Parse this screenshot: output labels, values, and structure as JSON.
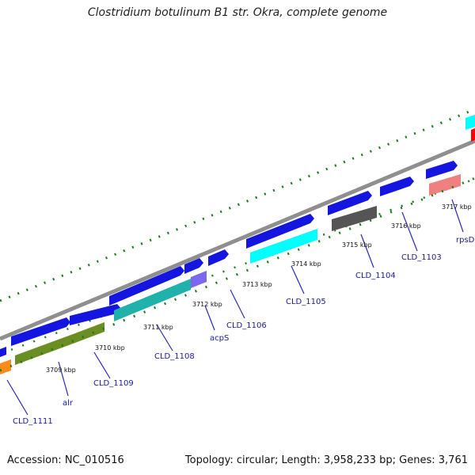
{
  "title": "Clostridium botulinum B1 str. Okra, complete genome",
  "accession": "Accession: NC_010516",
  "summary": "Topology: circular; Length: 3,958,233 bp; Genes: 3,761",
  "colors": {
    "backbone": "#8f8f8f",
    "gc_skew_dots": "#1e7a1e",
    "forward_cds": "#0000ee",
    "tick_marks": "#1e7a1e",
    "label_lines": "#2a2ab8",
    "gene_label_text": "#1a1aa0"
  },
  "tick_labels": [
    "3709 kbp",
    "3710 kbp",
    "3711 kbp",
    "3712 kbp",
    "3713 kbp",
    "3714 kbp",
    "3715 kbp",
    "3716 kbp",
    "3717 kbp"
  ],
  "gene_labels": [
    "CLD_1111",
    "alr",
    "CLD_1109",
    "CLD_1108",
    "acpS",
    "CLD_1106",
    "CLD_1105",
    "CLD_1104",
    "CLD_1103",
    "rpsD"
  ]
}
